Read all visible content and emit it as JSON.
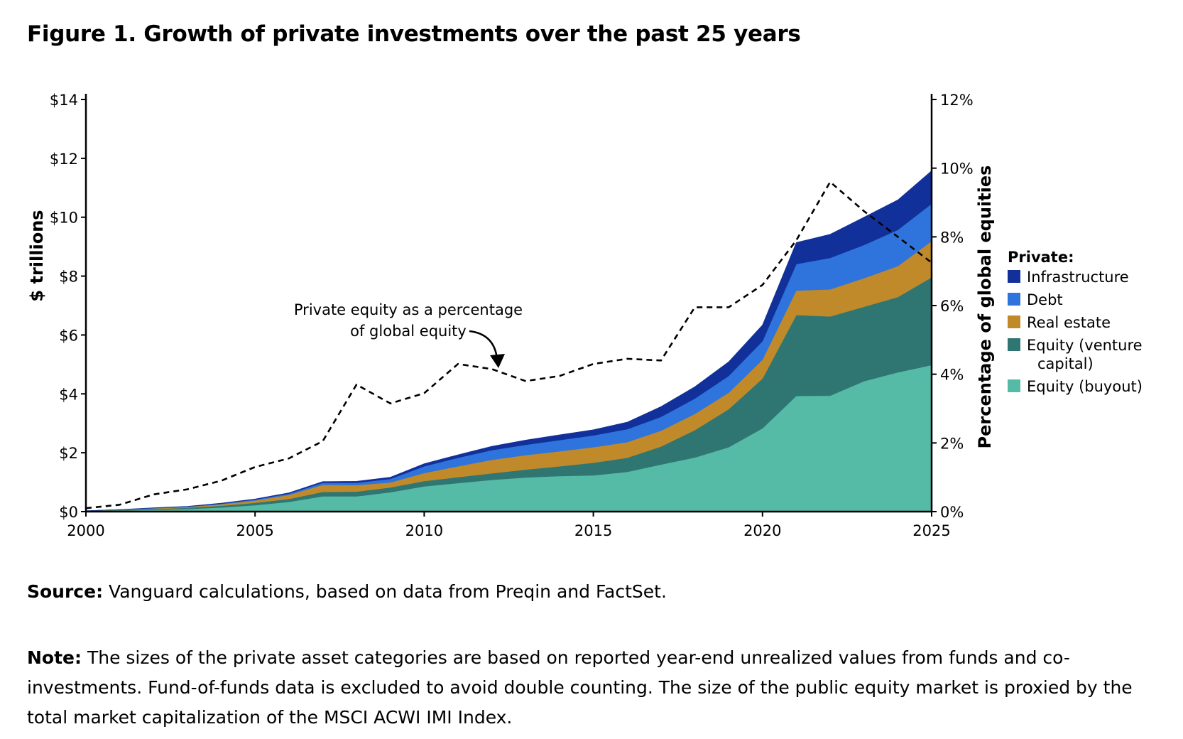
{
  "figure_title": "Figure 1. Growth of private investments over the past 25 years",
  "source": {
    "label": "Source:",
    "text": " Vanguard calculations, based on data from Preqin and FactSet."
  },
  "note": {
    "label": "Note:",
    "text": " The sizes of the private asset categories are based on reported year-end unrealized values from funds and co-investments. Fund-of-funds data is excluded to avoid double counting. The size of the public equity market is proxied by the total market capitalization of the MSCI ACWI IMI Index."
  },
  "chart_data": {
    "type": "area",
    "stacked": true,
    "x": [
      2000,
      2001,
      2002,
      2003,
      2004,
      2005,
      2006,
      2007,
      2008,
      2009,
      2010,
      2011,
      2012,
      2013,
      2014,
      2015,
      2016,
      2017,
      2018,
      2019,
      2020,
      2021,
      2022,
      2023,
      2024,
      2025
    ],
    "xticks": [
      "2000",
      "2005",
      "2010",
      "2015",
      "2020",
      "2025"
    ],
    "xticks_values": [
      2000,
      2005,
      2010,
      2015,
      2020,
      2025
    ],
    "ylabel": "$ trillions",
    "ylim": [
      0,
      14
    ],
    "yticks": [
      "$0",
      "$2",
      "$4",
      "$6",
      "$8",
      "$10",
      "$12",
      "$14"
    ],
    "y2label": "Percentage of global equities",
    "y2lim": [
      0,
      12
    ],
    "y2ticks": [
      "0%",
      "2%",
      "4%",
      "6%",
      "8%",
      "10%",
      "12%"
    ],
    "legend_title": "Private:",
    "legend_position": "right",
    "series": [
      {
        "name": "Equity (buyout)",
        "color": "#55bba6",
        "values": [
          0.02,
          0.04,
          0.06,
          0.09,
          0.14,
          0.22,
          0.33,
          0.52,
          0.52,
          0.66,
          0.86,
          0.97,
          1.08,
          1.16,
          1.21,
          1.23,
          1.35,
          1.6,
          1.84,
          2.19,
          2.83,
          3.93,
          3.94,
          4.43,
          4.73,
          4.98
        ]
      },
      {
        "name": "Equity (venture capital)",
        "color": "#2f7672",
        "values": [
          0.01,
          0.02,
          0.03,
          0.04,
          0.06,
          0.08,
          0.1,
          0.15,
          0.16,
          0.16,
          0.18,
          0.2,
          0.22,
          0.27,
          0.33,
          0.43,
          0.48,
          0.61,
          0.93,
          1.29,
          1.69,
          2.75,
          2.69,
          2.53,
          2.56,
          2.98
        ]
      },
      {
        "name": "Real estate",
        "color": "#c08a2b",
        "values": [
          0.0,
          0.01,
          0.02,
          0.03,
          0.05,
          0.08,
          0.14,
          0.24,
          0.22,
          0.17,
          0.27,
          0.37,
          0.46,
          0.49,
          0.51,
          0.53,
          0.53,
          0.54,
          0.55,
          0.56,
          0.64,
          0.83,
          0.92,
          0.97,
          1.05,
          1.23
        ]
      },
      {
        "name": "Debt",
        "color": "#2e74dc",
        "values": [
          0.0,
          0.0,
          0.01,
          0.01,
          0.02,
          0.03,
          0.04,
          0.07,
          0.08,
          0.12,
          0.23,
          0.29,
          0.33,
          0.35,
          0.38,
          0.4,
          0.44,
          0.47,
          0.52,
          0.57,
          0.63,
          0.9,
          1.07,
          1.13,
          1.23,
          1.27
        ]
      },
      {
        "name": "Infrastructure",
        "color": "#12309a",
        "values": [
          0.0,
          0.0,
          0.01,
          0.01,
          0.02,
          0.02,
          0.03,
          0.04,
          0.05,
          0.06,
          0.09,
          0.1,
          0.13,
          0.16,
          0.18,
          0.19,
          0.24,
          0.35,
          0.4,
          0.48,
          0.55,
          0.73,
          0.8,
          0.94,
          1.02,
          1.12
        ]
      }
    ],
    "line_series": {
      "name": "Private equity as a percentage of global equity",
      "axis": "right",
      "style": "dashed",
      "color": "#000000",
      "values": [
        0.1,
        0.2,
        0.5,
        0.65,
        0.9,
        1.3,
        1.55,
        2.05,
        3.7,
        3.15,
        3.45,
        4.3,
        4.15,
        3.8,
        3.95,
        4.3,
        4.45,
        4.4,
        5.95,
        5.95,
        6.6,
        7.9,
        9.6,
        8.75,
        8.0,
        7.25
      ]
    },
    "annotation": {
      "line1": "Private equity as a percentage",
      "line2": "of global equity"
    }
  }
}
